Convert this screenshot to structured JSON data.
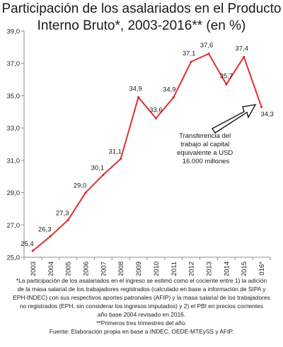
{
  "chart_data": {
    "type": "line",
    "title_lines": [
      "Participación de los asalariados en el Producto",
      "Interno Bruto*, 2003-2016** (en %)"
    ],
    "categories": [
      "2003",
      "2004",
      "2005",
      "2006",
      "2007",
      "2008",
      "2009",
      "2010",
      "2011",
      "2012",
      "2013",
      "2014",
      "2015",
      "2016*"
    ],
    "values": [
      25.4,
      26.3,
      27.3,
      29.0,
      30.1,
      31.1,
      34.9,
      33.6,
      34.9,
      37.1,
      37.6,
      35.7,
      37.4,
      34.3
    ],
    "data_labels": [
      "25,4",
      "26,3",
      "27,3",
      "29,0",
      "30,1",
      "31,1",
      "34,9",
      "33,6",
      "34,9",
      "37,1",
      "37,6",
      "35,7",
      "37,4",
      "34,3"
    ],
    "y_ticks": [
      25.0,
      27.0,
      29.0,
      31.0,
      33.0,
      35.0,
      37.0,
      39.0
    ],
    "y_tick_labels": [
      "25,0",
      "27,0",
      "29,0",
      "31,0",
      "33,0",
      "35,0",
      "37,0",
      "39,0"
    ],
    "ylim": [
      25.0,
      39.0
    ],
    "grid": false,
    "line_color": "#e03030",
    "annotation": {
      "lines": [
        "Transferencia del",
        "trabajo al capital",
        "equivalente a USD",
        "16.000 millones"
      ]
    }
  },
  "notes": [
    "*La participación de los asalariados en el ingreso se estimó como el cociente entre 1) la adición",
    "de la masa salarial de los trabajadores registrados (calculado en base a información de SIPA y",
    "EPH-INDEC) con sus respectivos aportes patronales (AFIP) y la masa salarial de los trabajadores",
    "no registrados (EPH, sin considerar los ingresos imputados) y 2) el PBI en precios corrientes",
    "año base 2004 revisado en 2016.",
    "**Primeros tres trimestres del año.",
    "Fuente: Elaboración propia en base a INDEC, OEDE-MTEySS y AFIP."
  ]
}
